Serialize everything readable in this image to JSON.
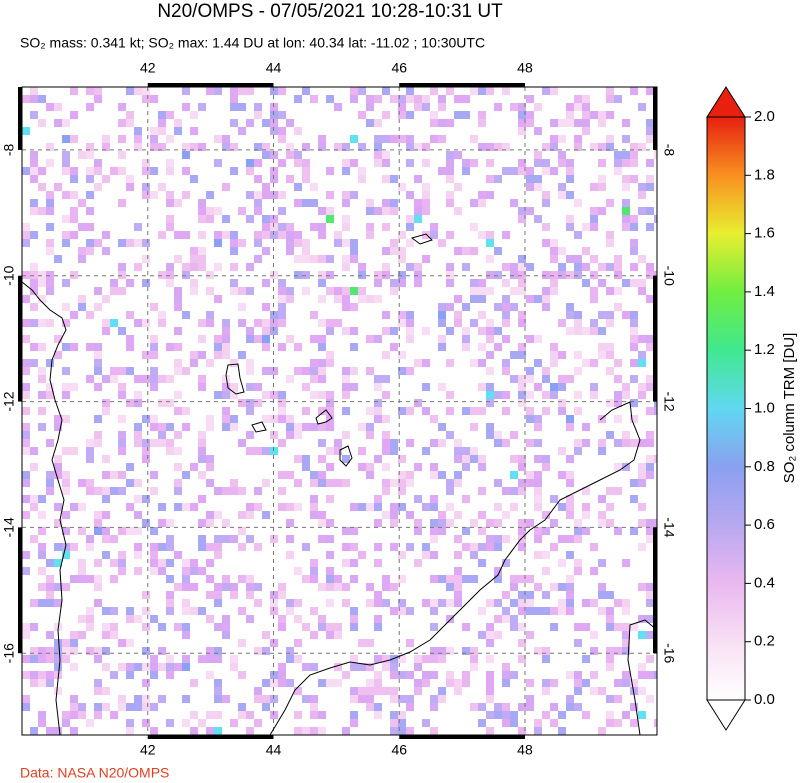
{
  "header": {
    "title": "N20/OMPS - 07/05/2021 10:28-10:31 UT",
    "subtitle": "SO₂ mass: 0.341 kt; SO₂ max: 1.44 DU at lon: 40.34 lat: -11.02 ; 10:30UTC"
  },
  "map": {
    "lon_range": [
      40,
      50.1
    ],
    "lat_range": [
      -7,
      -17.3
    ],
    "lon_ticks": [
      42,
      44,
      46,
      48
    ],
    "lat_ticks": [
      -8,
      -10,
      -12,
      -14,
      -16
    ]
  },
  "colorbar": {
    "label": "SO₂ column TRM [DU]",
    "range": [
      0,
      2
    ],
    "ticks": [
      {
        "value": 0,
        "label": "0.0"
      },
      {
        "value": 0.2,
        "label": "0.2"
      },
      {
        "value": 0.4,
        "label": "0.4"
      },
      {
        "value": 0.6,
        "label": "0.6"
      },
      {
        "value": 0.8,
        "label": "0.8"
      },
      {
        "value": 1,
        "label": "1.0"
      },
      {
        "value": 1.2,
        "label": "1.2"
      },
      {
        "value": 1.4,
        "label": "1.4"
      },
      {
        "value": 1.6,
        "label": "1.6"
      },
      {
        "value": 1.8,
        "label": "1.8"
      },
      {
        "value": 2,
        "label": "2.0"
      }
    ]
  },
  "footer": {
    "credit": "Data: NASA N20/OMPS"
  }
}
